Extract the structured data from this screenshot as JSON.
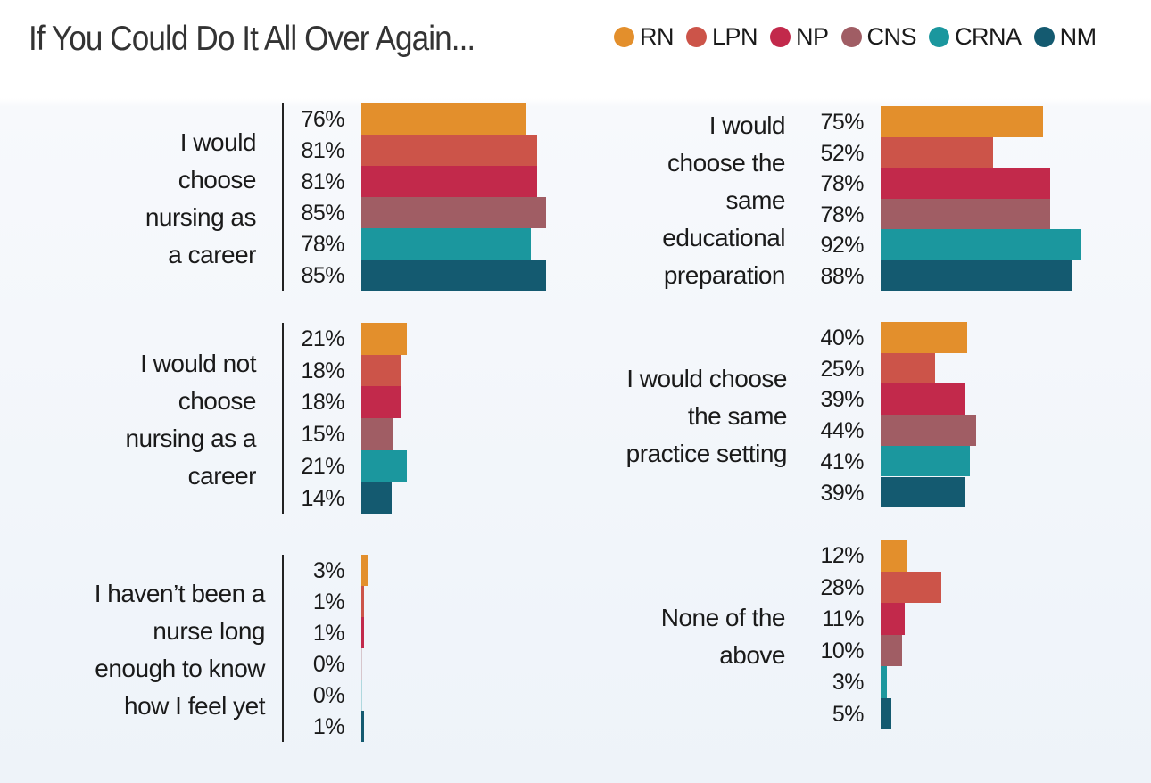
{
  "chart_data": {
    "type": "bar",
    "orientation": "horizontal",
    "title": "If You Could Do It All Over Again...",
    "legend_position": "top-right",
    "series_names": [
      "RN",
      "LPN",
      "NP",
      "CNS",
      "CRNA",
      "NM"
    ],
    "colors": [
      "#e38f2c",
      "#cc5449",
      "#c2294b",
      "#a05d64",
      "#1b979e",
      "#145a70"
    ],
    "value_format": "percent",
    "xlim": [
      0,
      100
    ],
    "grid": false,
    "panels": [
      {
        "category": "I would choose nursing as a career",
        "label_lines": [
          "I would",
          "choose",
          "nursing as",
          "a career"
        ],
        "values": [
          76,
          81,
          81,
          85,
          78,
          85
        ]
      },
      {
        "category": "I would choose the same educational preparation",
        "label_lines": [
          "I would",
          "choose the",
          "same",
          "educational",
          "preparation"
        ],
        "values": [
          75,
          52,
          78,
          78,
          92,
          88
        ]
      },
      {
        "category": "I would not choose nursing as a career",
        "label_lines": [
          "I would not",
          "choose",
          "nursing as a",
          "career"
        ],
        "values": [
          21,
          18,
          18,
          15,
          21,
          14
        ]
      },
      {
        "category": "I would choose the same practice setting",
        "label_lines": [
          "I would choose",
          "the same",
          "practice setting"
        ],
        "values": [
          40,
          25,
          39,
          44,
          41,
          39
        ]
      },
      {
        "category": "I haven’t been a nurse long enough to know how I feel yet",
        "label_lines": [
          "I haven’t been a",
          "nurse long",
          "enough to know",
          "how I feel yet"
        ],
        "values": [
          3,
          1,
          1,
          0,
          0,
          1
        ]
      },
      {
        "category": "None of the above",
        "label_lines": [
          "None of the",
          "above"
        ],
        "values": [
          12,
          28,
          11,
          10,
          3,
          5
        ]
      }
    ]
  }
}
